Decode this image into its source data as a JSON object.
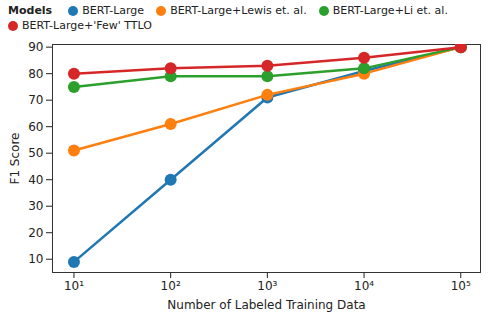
{
  "chart_data": {
    "type": "line",
    "x_label": "Number of Labeled Training Data",
    "y_label": "F1 Score",
    "legend_title": "Models",
    "legend": "top",
    "log": "x",
    "grid": false,
    "x": [
      10,
      100,
      1000,
      10000,
      100000
    ],
    "xlim": [
      6,
      160000
    ],
    "xticks": [
      {
        "value": 10,
        "label": "10¹"
      },
      {
        "value": 100,
        "label": "10²"
      },
      {
        "value": 1000,
        "label": "10³"
      },
      {
        "value": 10000,
        "label": "10⁴"
      },
      {
        "value": 100000,
        "label": "10⁵"
      }
    ],
    "ylim": [
      5,
      91
    ],
    "yticks": [
      10,
      20,
      30,
      40,
      50,
      60,
      70,
      80,
      90
    ],
    "marker": "circle",
    "line_style": "solid",
    "series": [
      {
        "name": "BERT-Large",
        "color": "#1f77b4",
        "values": [
          9,
          40,
          71,
          81,
          90
        ]
      },
      {
        "name": "BERT-Large+Lewis et. al.",
        "color": "#ff7f0e",
        "values": [
          51,
          61,
          72,
          80,
          90
        ]
      },
      {
        "name": "BERT-Large+Li et. al.",
        "color": "#2ca02c",
        "values": [
          75,
          79,
          79,
          82,
          90
        ]
      },
      {
        "name": "BERT-Large+'Few' TTLO",
        "color": "#d62728",
        "values": [
          80,
          82,
          83,
          86,
          90
        ]
      }
    ]
  }
}
